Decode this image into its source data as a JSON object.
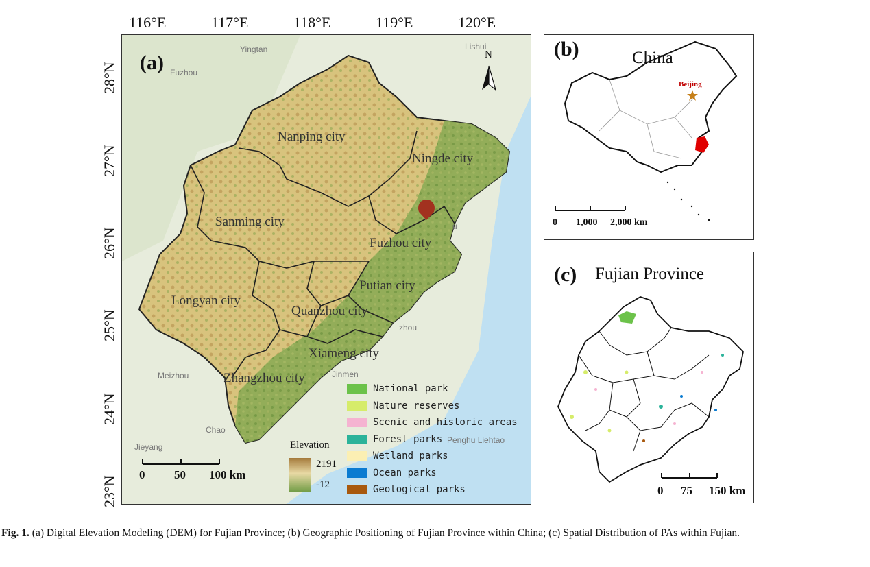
{
  "panel_a": {
    "letter": "(a)",
    "lon_ticks": [
      "116°E",
      "117°E",
      "118°E",
      "119°E",
      "120°E"
    ],
    "lat_ticks": [
      "28°N",
      "27°N",
      "26°N",
      "25°N",
      "24°N",
      "23°N"
    ],
    "north_label": "N",
    "cities": [
      "Nanping city",
      "Ningde city",
      "Sanming city",
      "Fuzhou city",
      "Putian city",
      "Longyan city",
      "Quanzhou city",
      "Xiameng city",
      "Zhangzhou city"
    ],
    "background_places": [
      "Yingtan",
      "Lishui",
      "Fuzhou",
      "Meizhou",
      "Jieyang",
      "Chao",
      "Penghu Liehtao",
      "zhou",
      "Jinmen",
      "u"
    ],
    "elevation": {
      "title": "Elevation",
      "max": "2191",
      "min": "-12",
      "color_high": "#a07a3c",
      "color_mid": "#e6d7a2",
      "color_low": "#6f9b44"
    },
    "scale": {
      "ticks": [
        "0",
        "50",
        "100 km"
      ]
    },
    "legend": [
      {
        "label": "National park",
        "color": "#6cc24a"
      },
      {
        "label": "Nature reserves",
        "color": "#d6ec6a"
      },
      {
        "label": "Scenic and historic areas",
        "color": "#f5b3d1"
      },
      {
        "label": "Forest parks",
        "color": "#2bb39a"
      },
      {
        "label": "Wetland parks",
        "color": "#fbefb3"
      },
      {
        "label": "Ocean parks",
        "color": "#0a7bd1"
      },
      {
        "label": "Geological parks",
        "color": "#a8590e"
      }
    ]
  },
  "panel_b": {
    "letter": "(b)",
    "title": "China",
    "capital": "Beijing",
    "scale": {
      "ticks": [
        "0",
        "1,000",
        "2,000 km"
      ]
    }
  },
  "panel_c": {
    "letter": "(c)",
    "title": "Fujian Province",
    "scale": {
      "ticks": [
        "0",
        "75",
        "150 km"
      ]
    }
  },
  "caption": {
    "label": "Fig. 1.",
    "text": "(a) Digital Elevation Modeling (DEM) for Fujian Province; (b) Geographic Positioning of Fujian Province within China; (c) Spatial Distribution of PAs within Fujian."
  }
}
